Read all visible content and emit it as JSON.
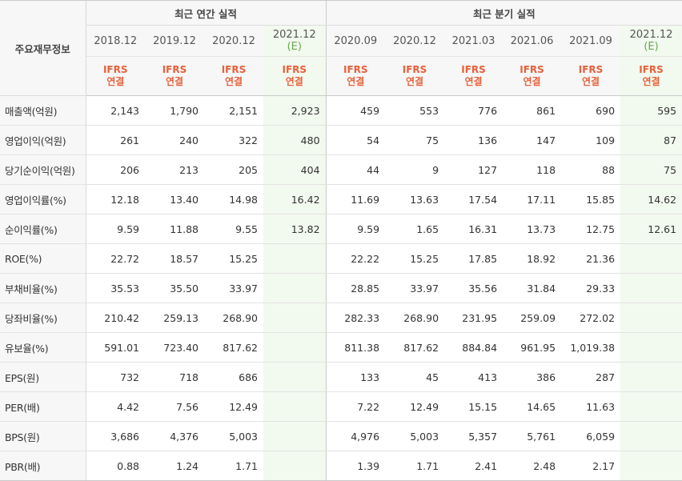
{
  "header": {
    "row_label": "주요재무정보",
    "annual_title": "최근 연간 실적",
    "quarter_title": "최근 분기 실적",
    "ifrs_top": "IFRS",
    "ifrs_bottom": "연결"
  },
  "periods": [
    {
      "date": "2018.12",
      "sub": ""
    },
    {
      "date": "2019.12",
      "sub": ""
    },
    {
      "date": "2020.12",
      "sub": ""
    },
    {
      "date": "2021.12",
      "sub": "(E)"
    },
    {
      "date": "2020.09",
      "sub": ""
    },
    {
      "date": "2020.12",
      "sub": ""
    },
    {
      "date": "2021.03",
      "sub": ""
    },
    {
      "date": "2021.06",
      "sub": ""
    },
    {
      "date": "2021.09",
      "sub": ""
    },
    {
      "date": "2021.12",
      "sub": "(E)"
    }
  ],
  "rows": [
    {
      "label": "매출액(억원)",
      "values": [
        "2,143",
        "1,790",
        "2,151",
        "2,923",
        "459",
        "553",
        "776",
        "861",
        "690",
        "595"
      ]
    },
    {
      "label": "영업이익(억원)",
      "values": [
        "261",
        "240",
        "322",
        "480",
        "54",
        "75",
        "136",
        "147",
        "109",
        "87"
      ]
    },
    {
      "label": "당기순이익(억원)",
      "values": [
        "206",
        "213",
        "205",
        "404",
        "44",
        "9",
        "127",
        "118",
        "88",
        "75"
      ]
    },
    {
      "label": "영업이익률(%)",
      "values": [
        "12.18",
        "13.40",
        "14.98",
        "16.42",
        "11.69",
        "13.63",
        "17.54",
        "17.11",
        "15.85",
        "14.62"
      ]
    },
    {
      "label": "순이익률(%)",
      "values": [
        "9.59",
        "11.88",
        "9.55",
        "13.82",
        "9.59",
        "1.65",
        "16.31",
        "13.73",
        "12.75",
        "12.61"
      ]
    },
    {
      "label": "ROE(%)",
      "values": [
        "22.72",
        "18.57",
        "15.25",
        "",
        "22.22",
        "15.25",
        "17.85",
        "18.92",
        "21.36",
        ""
      ]
    },
    {
      "label": "부채비율(%)",
      "values": [
        "35.53",
        "35.50",
        "33.97",
        "",
        "28.85",
        "33.97",
        "35.56",
        "31.84",
        "29.33",
        ""
      ]
    },
    {
      "label": "당좌비율(%)",
      "values": [
        "210.42",
        "259.13",
        "268.90",
        "",
        "282.33",
        "268.90",
        "231.95",
        "259.09",
        "272.02",
        ""
      ]
    },
    {
      "label": "유보율(%)",
      "values": [
        "591.01",
        "723.40",
        "817.62",
        "",
        "811.38",
        "817.62",
        "884.84",
        "961.95",
        "1,019.38",
        ""
      ]
    },
    {
      "label": "EPS(원)",
      "values": [
        "732",
        "718",
        "686",
        "",
        "133",
        "45",
        "413",
        "386",
        "287",
        ""
      ]
    },
    {
      "label": "PER(배)",
      "values": [
        "4.42",
        "7.56",
        "12.49",
        "",
        "7.22",
        "12.49",
        "15.15",
        "14.65",
        "11.63",
        ""
      ]
    },
    {
      "label": "BPS(원)",
      "values": [
        "3,686",
        "4,376",
        "5,003",
        "",
        "4,976",
        "5,003",
        "5,357",
        "5,761",
        "6,059",
        ""
      ]
    },
    {
      "label": "PBR(배)",
      "values": [
        "0.88",
        "1.24",
        "1.71",
        "",
        "1.39",
        "1.71",
        "2.41",
        "2.48",
        "2.17",
        ""
      ]
    }
  ]
}
